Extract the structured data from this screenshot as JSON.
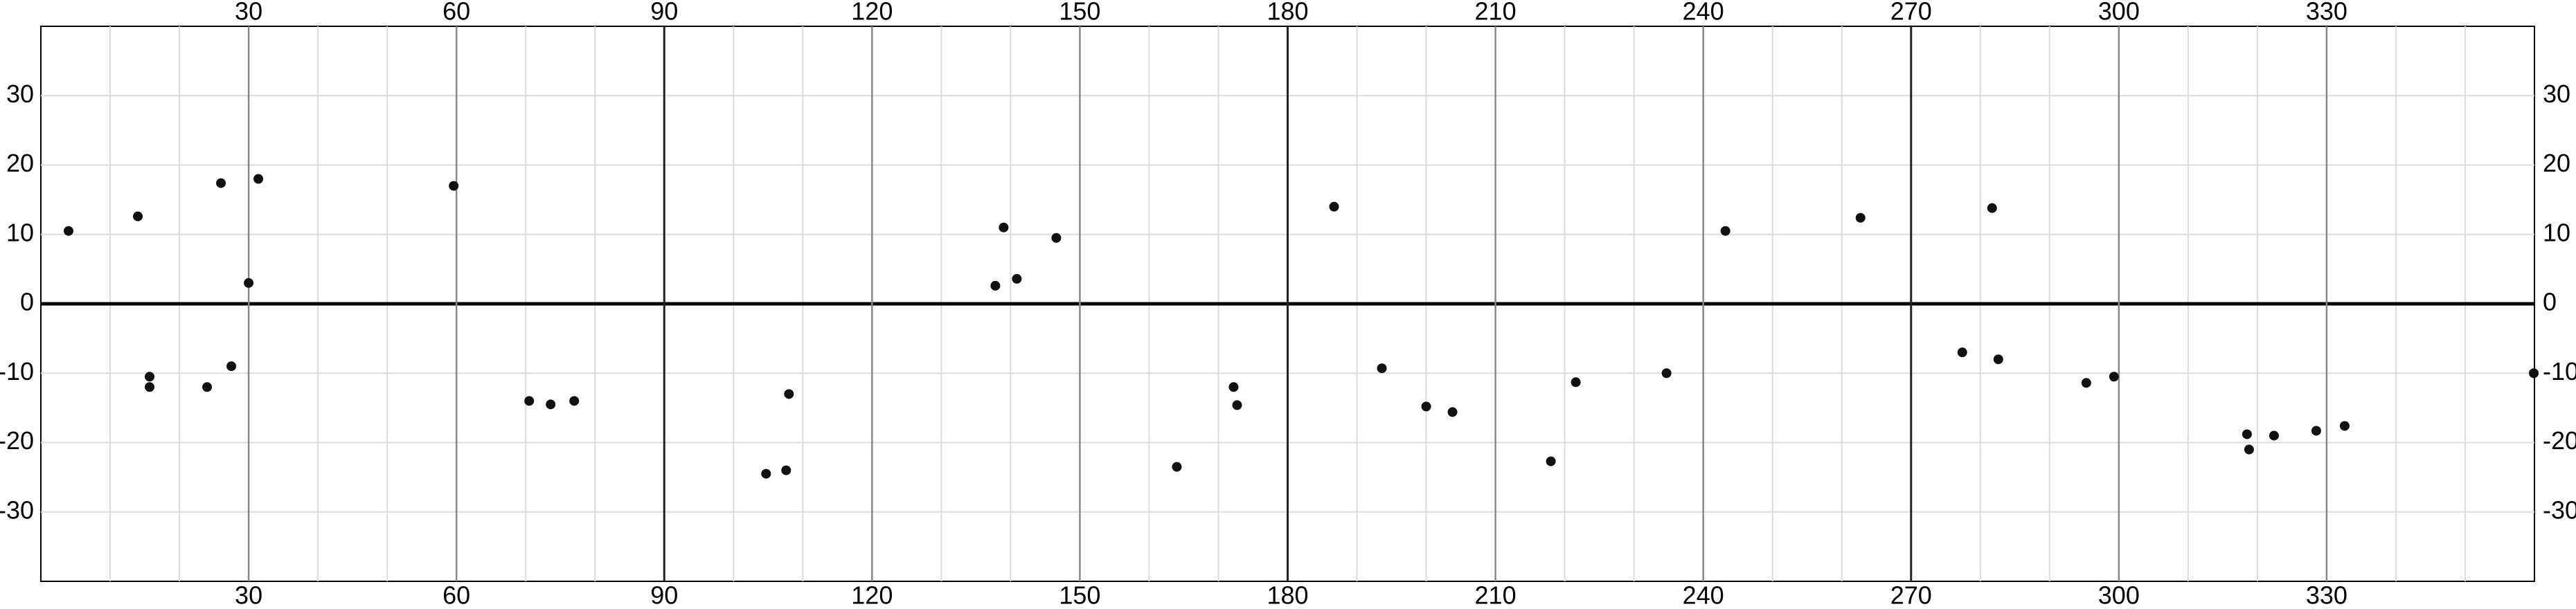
{
  "chart_data": {
    "type": "scatter",
    "x": [
      4,
      14,
      31.4,
      26,
      59.6,
      30,
      15.7,
      15.7,
      24,
      27.5,
      70.5,
      73.6,
      77,
      104.7,
      107.6,
      108,
      137.8,
      140.9,
      139,
      146.6,
      172.7,
      172.2,
      164,
      186.7,
      193.6,
      200,
      203.8,
      221.6,
      218,
      234.7,
      243.2,
      262.7,
      277.4,
      282.6,
      281.7,
      295.3,
      299.3,
      318.5,
      318.8,
      322.4,
      328.5,
      332.6,
      359.9
    ],
    "y": [
      10.5,
      12.6,
      18,
      17.4,
      17,
      3,
      -12,
      -10.5,
      -12,
      -9,
      -14,
      -14.5,
      -14,
      -24.5,
      -24,
      -13,
      2.6,
      3.6,
      11,
      9.5,
      -14.6,
      -12,
      -23.5,
      14,
      -9.3,
      -14.8,
      -15.6,
      -11.3,
      -22.7,
      -10,
      10.5,
      12.4,
      -7,
      -8,
      13.8,
      -11.4,
      -10.5,
      -18.8,
      -21,
      -19,
      -18.3,
      -17.6,
      -10
    ],
    "color": "#111111",
    "xlim": [
      0,
      360
    ],
    "ylim": [
      -40,
      40
    ],
    "xticks": [
      30,
      60,
      90,
      120,
      150,
      180,
      210,
      240,
      270,
      300,
      330
    ],
    "yticks": [
      -30,
      -20,
      -10,
      0,
      10,
      20,
      30
    ],
    "x_minor_grid": [
      10,
      20,
      40,
      50,
      70,
      80,
      100,
      110,
      130,
      140,
      160,
      170,
      190,
      200,
      220,
      230,
      250,
      260,
      280,
      290,
      310,
      320,
      340,
      350
    ],
    "grid": true
  }
}
